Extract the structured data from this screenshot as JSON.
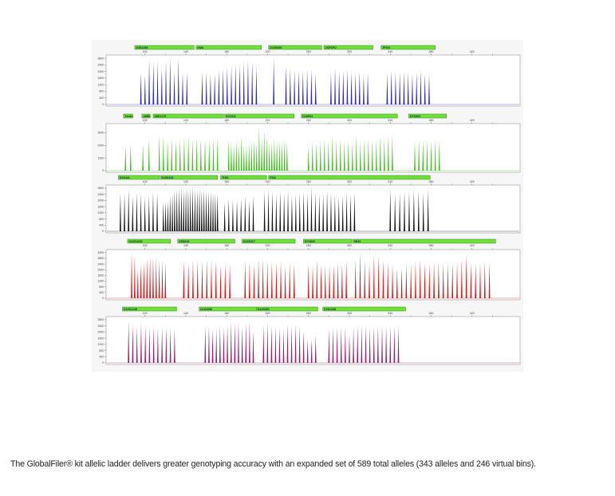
{
  "caption": "The GlobalFiler® kit allelic ladder delivers greater genotyping accuracy with an expanded set of 589 total alleles (343 alleles and 246 virtual bins).",
  "chart_data": {
    "type": "line",
    "subtype": "electropherogram",
    "x_unit": "bp",
    "xlim": [
      62,
      467
    ],
    "x_ticks": [
      100,
      140,
      180,
      220,
      260,
      300,
      340,
      380,
      420
    ],
    "grid": false,
    "marker_bar_color": "#6fe03a",
    "panels": [
      {
        "color": "#2a22cc",
        "ylim": [
          0,
          2900
        ],
        "y_ticks": [
          0,
          400,
          800,
          1200,
          1600,
          2000,
          2400,
          2800
        ],
        "loci": [
          {
            "name": "D3S1358",
            "bar": [
              90,
              148
            ],
            "segments": [
              {
                "range": [
                  96,
                  141
                ],
                "heights": [
                  1900,
                  1800,
                  2700,
                  2600,
                  2600,
                  2200,
                  2600,
                  2800,
                  1950,
                  2800,
                  1950,
                  1950
                ]
              }
            ]
          },
          {
            "name": "vWA",
            "bar": [
              150,
              214
            ],
            "segments": [
              {
                "range": [
                  156,
                  209
                ],
                "heights": [
                  1950,
                  1950,
                  1850,
                  1850,
                  2100,
                  2150,
                  2250,
                  2350,
                  2450,
                  2400,
                  2600,
                  2700,
                  2600,
                  2300
                ]
              }
            ]
          },
          {
            "name": "D16S539",
            "bar": [
              221,
              273
            ],
            "segments": [
              {
                "range": [
                  226,
                  226
                ],
                "heights": [
                  2800
                ]
              },
              {
                "range": [
                  238,
                  267
                ],
                "heights": [
                  2350,
                  2200,
                  2100,
                  2050,
                  2050,
                  2100,
                  2100,
                  1850
                ]
              }
            ]
          },
          {
            "name": "CSF1PO",
            "bar": [
              275,
              323
            ],
            "segments": [
              {
                "range": [
                  282,
                  318
                ],
                "heights": [
                  1900,
                  2200,
                  2050,
                  2050,
                  2100,
                  1950,
                  1900,
                  2000,
                  1800,
                  1900
                ]
              }
            ]
          },
          {
            "name": "TPOX",
            "bar": [
              331,
              384
            ],
            "segments": [
              {
                "range": [
                  337,
                  378
                ],
                "heights": [
                  1900,
                  2050,
                  1950,
                  1950,
                  1950,
                  1950,
                  1850,
                  1950,
                  2050,
                  1850,
                  1850
                ]
              }
            ]
          }
        ]
      },
      {
        "color": "#3fbe1c",
        "ylim": [
          0,
          3600
        ],
        "y_ticks": [
          0,
          1000,
          2000,
          3000
        ],
        "loci": [
          {
            "name": "Yindel",
            "bar": [
              79,
              88
            ],
            "segments": [
              {
                "range": [
                  81,
                  86
                ],
                "heights": [
                  2000,
                  2100
                ]
              }
            ]
          },
          {
            "name": "AMEL",
            "bar": [
              97,
              105
            ],
            "segments": [
              {
                "range": [
                  98,
                  104
                ],
                "heights": [
                  2100,
                  2500
                ]
              }
            ]
          },
          {
            "name": "D8S1179",
            "bar": [
              108,
              177
            ],
            "segments": [
              {
                "range": [
                  114,
                  171
                ],
                "heights": [
                  2800,
                  2700,
                  2400,
                  2600,
                  2400,
                  2500,
                  2600,
                  2700,
                  2500,
                  2600,
                  2500,
                  2500,
                  2400,
                  2600,
                  2600
                ]
              }
            ]
          },
          {
            "name": "D21S11",
            "bar": [
              178,
              246
            ],
            "segments": [
              {
                "range": [
                  182,
                  239
                ],
                "heights": [
                  2500,
                  2300,
                  2000,
                  2300,
                  2100,
                  2700,
                  2000,
                  2100,
                  2200,
                  2300,
                  2400,
                  2200,
                  3500,
                  2600,
                  3200,
                  2700,
                  2200,
                  2300,
                  2600,
                  2400,
                  2300,
                  2300,
                  2400,
                  2300
                ]
              }
            ]
          },
          {
            "name": "D18S51",
            "bar": [
              253,
              347
            ],
            "segments": [
              {
                "range": [
                  260,
                  342
                ],
                "heights": [
                  1900,
                  2300,
                  2200,
                  2400,
                  2400,
                  2300,
                  2700,
                  2400,
                  2500,
                  2300,
                  2300,
                  2200,
                  2700,
                  2300,
                  2400,
                  2500,
                  2400,
                  2500,
                  2700,
                  2600,
                  2800,
                  2800
                ]
              }
            ]
          },
          {
            "name": "DYS391",
            "bar": [
              358,
              395
            ],
            "segments": [
              {
                "range": [
                  364,
                  388
                ],
                "heights": [
                  2300,
                  2500,
                  2400,
                  2400,
                  2300,
                  2500,
                  2300
                ]
              }
            ]
          }
        ]
      },
      {
        "color": "#111111",
        "ylim": [
          0,
          2900
        ],
        "y_ticks": [
          0,
          400,
          800,
          1200,
          1600,
          2000,
          2400,
          2800
        ],
        "loci": [
          {
            "name": "D2S441",
            "bar": [
              74,
              114
            ],
            "segments": [
              {
                "range": [
                  76,
                  112
                ],
                "heights": [
                  2500,
                  2400,
                  2700,
                  2300,
                  2500,
                  2400,
                  2200,
                  2300,
                  2500,
                  2500
                ]
              }
            ]
          },
          {
            "name": "D19S433",
            "bar": [
              115,
              171
            ],
            "segments": [
              {
                "range": [
                  118,
                  171
                ],
                "heights": [
                  1900,
                  1950,
                  2000,
                  2300,
                  2400,
                  2700,
                  2750,
                  2800,
                  2850,
                  2700,
                  2800,
                  2750,
                  2800,
                  2900,
                  2750,
                  2700,
                  2800,
                  2700,
                  2750,
                  2650,
                  2600,
                  2600,
                  2500,
                  2500,
                  2450
                ]
              }
            ]
          },
          {
            "name": "TH01",
            "bar": [
              174,
              219
            ],
            "segments": [
              {
                "range": [
                  178,
                  206
                ],
                "heights": [
                  1900,
                  2100,
                  2000,
                  2000,
                  2100,
                  2300,
                  2000,
                  2300
                ]
              }
            ]
          },
          {
            "name": "FGA",
            "bar": [
              221,
              379
            ],
            "segments": [
              {
                "range": [
                  217,
                  305
                ],
                "heights": [
                  2600,
                  2700,
                  2600,
                  2400,
                  2600,
                  2400,
                  2600,
                  2300,
                  2400,
                  2500,
                  2600,
                  2500,
                  2800,
                  2500,
                  2400,
                  2400,
                  2600,
                  2500,
                  2300,
                  2200,
                  2300,
                  2500,
                  2400,
                  2500
                ]
              },
              {
                "range": [
                  340,
                  377
                ],
                "heights": [
                  2700,
                  2400,
                  2500,
                  2600,
                  2600,
                  2700,
                  2600,
                  2500,
                  2700
                ]
              }
            ]
          }
        ]
      },
      {
        "color": "#e01212",
        "ylim": [
          0,
          3300
        ],
        "y_ticks": [
          0,
          400,
          800,
          1200,
          1600,
          2000,
          2400,
          2800,
          3200
        ],
        "loci": [
          {
            "name": "D22S1045",
            "bar": [
              83,
              125
            ],
            "segments": [
              {
                "range": [
                  87,
                  120
                ],
                "heights": [
                  3200,
                  3000,
                  2000,
                  2400,
                  2500,
                  2800,
                  2900,
                  2900,
                  2900,
                  2700,
                  2600,
                  2500
                ]
              }
            ]
          },
          {
            "name": "D5S818",
            "bar": [
              132,
              188
            ],
            "segments": [
              {
                "range": [
                  138,
                  183
                ],
                "heights": [
                  2600,
                  2500,
                  2700,
                  2700,
                  2600,
                  2700,
                  2600,
                  2600,
                  2300,
                  2400,
                  2400
                ]
              }
            ]
          },
          {
            "name": "D13S317",
            "bar": [
              195,
              247
            ],
            "segments": [
              {
                "range": [
                  198,
                  246
                ],
                "heights": [
                  2600,
                  2500,
                  2400,
                  2700,
                  2700,
                  2600,
                  2500,
                  2500,
                  2600,
                  2300,
                  2500,
                  2400
                ]
              }
            ]
          },
          {
            "name": "D7S820",
            "bar": [
              255,
              302
            ],
            "segments": [
              {
                "range": [
                  260,
                  297
                ],
                "heights": [
                  2400,
                  2300,
                  2700,
                  2400,
                  2300,
                  2300,
                  2300,
                  2500,
                  2400,
                  2600
                ]
              }
            ]
          },
          {
            "name": "SE33",
            "bar": [
              303,
              443
            ],
            "segments": [
              {
                "range": [
                  306,
                  437
                ],
                "heights": [
                  2700,
                  3200,
                  2600,
                  2500,
                  3000,
                  3000,
                  2700,
                  2500,
                  2400,
                  2100,
                  2200,
                  2400,
                  2400,
                  2600,
                  2700,
                  2500,
                  2400,
                  2500,
                  2500,
                  2500,
                  2500,
                  2500,
                  2500,
                  2700,
                  3100,
                  2500,
                  2400,
                  2500,
                  2600,
                  2500
                ]
              }
            ]
          }
        ]
      },
      {
        "color": "#9a1c6c",
        "ylim": [
          0,
          2900
        ],
        "y_ticks": [
          0,
          400,
          800,
          1200,
          1600,
          2000,
          2400,
          2800
        ],
        "loci": [
          {
            "name": "D10S1248",
            "bar": [
              78,
              131
            ],
            "segments": [
              {
                "range": [
                  84,
                  129
                ],
                "heights": [
                  2700,
                  2500,
                  2400,
                  2600,
                  2400,
                  2300,
                  2400,
                  2300,
                  2300,
                  2300,
                  2300,
                  2200
                ]
              }
            ]
          },
          {
            "name": "D1S1656",
            "bar": [
              153,
              209
            ],
            "segments": [
              {
                "range": [
                  159,
                  206
                ],
                "heights": [
                  2400,
                  2400,
                  2200,
                  2200,
                  2400,
                  2300,
                  2500,
                  2700,
                  2600,
                  2700,
                  2400,
                  2600,
                  2700,
                  2100
                ]
              }
            ]
          },
          {
            "name": "D12S391",
            "bar": [
              209,
              269
            ],
            "segments": [
              {
                "range": [
                  216,
                  267
                ],
                "heights": [
                  2400,
                  2600,
                  2400,
                  2400,
                  2300,
                  2200,
                  2500,
                  2400,
                  2500,
                  2400,
                  2100,
                  1600,
                  1500,
                  1800
                ]
              }
            ]
          },
          {
            "name": "D2S1338",
            "bar": [
              274,
              355
            ],
            "segments": [
              {
                "range": [
                  280,
                  348
                ],
                "heights": [
                  2200,
                  2300,
                  2300,
                  2300,
                  2300,
                  1900,
                  2300,
                  2400,
                  2400,
                  2400,
                  2300,
                  2300,
                  2400,
                  2400,
                  2400,
                  2400,
                  2400,
                  2400
                ]
              }
            ]
          }
        ]
      }
    ]
  }
}
